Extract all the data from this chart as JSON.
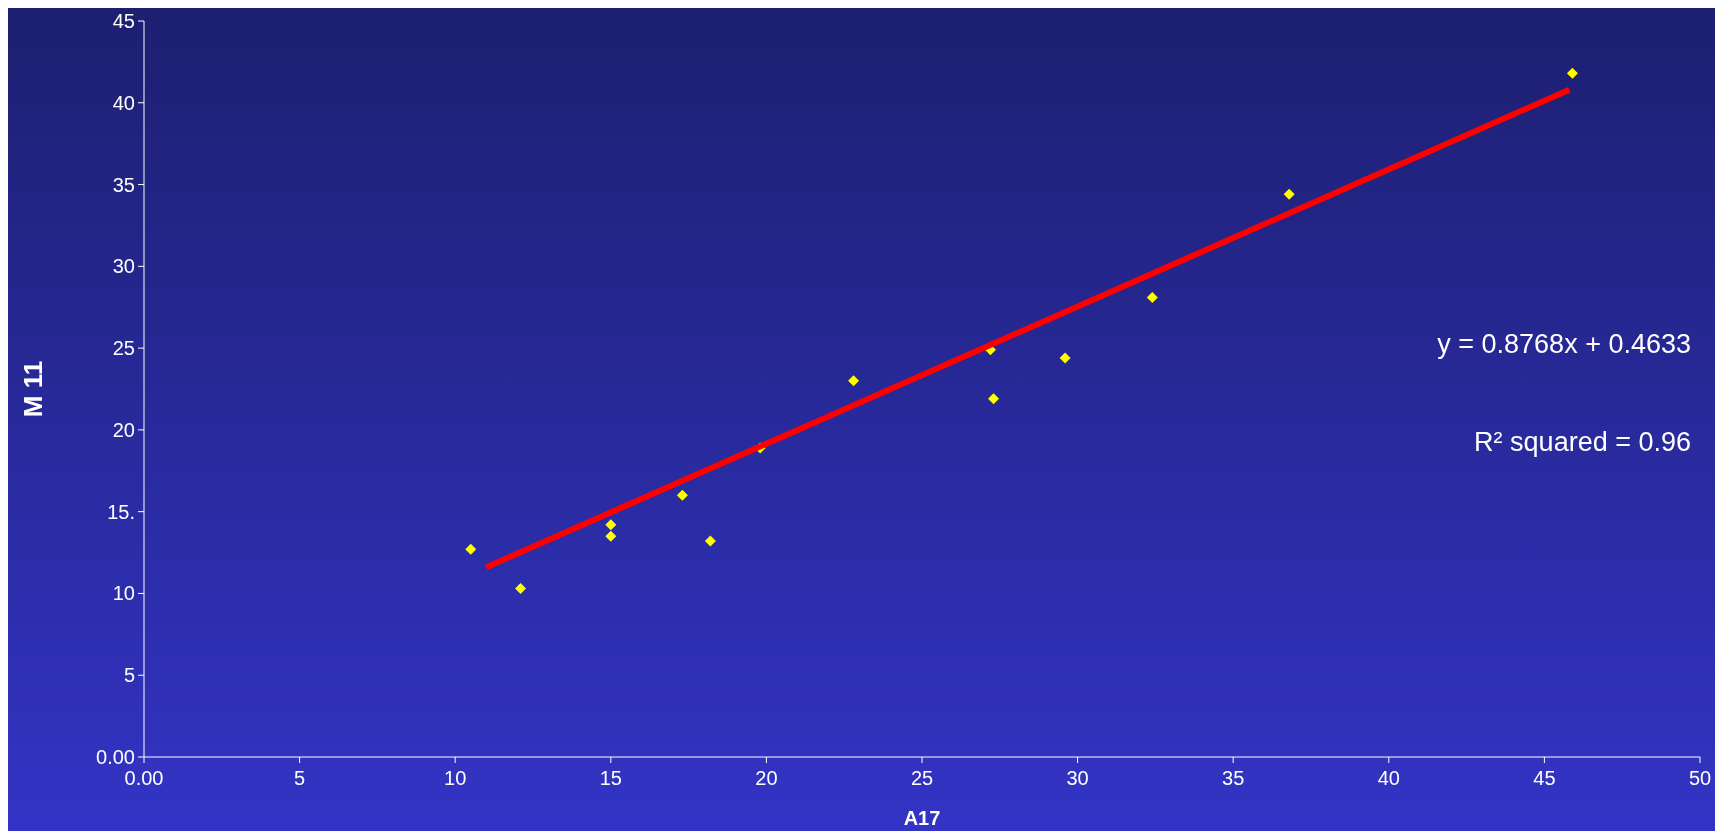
{
  "chart_data": {
    "type": "scatter",
    "xlabel": "A17",
    "ylabel": "M 11",
    "xlim": [
      0,
      50
    ],
    "xticks": [
      {
        "value": 0,
        "label": "0.00"
      },
      5,
      10,
      15,
      20,
      25,
      30,
      35,
      40,
      45,
      50
    ],
    "ylim": [
      0,
      45
    ],
    "yticks": [
      {
        "value": 0,
        "label": "0.00"
      },
      5,
      10,
      {
        "value": 15,
        "label": "15."
      },
      20,
      25,
      30,
      35,
      40,
      45
    ],
    "grid": false,
    "marker": "diamond",
    "series": [
      {
        "color": "#ffff00",
        "x": [
          10.5,
          12.1,
          15.0,
          15.0,
          17.3,
          18.2,
          19.8,
          22.8,
          27.2,
          27.3,
          29.6,
          32.4,
          36.8,
          45.9
        ],
        "values": [
          12.7,
          10.3,
          14.2,
          13.5,
          16.0,
          13.2,
          18.9,
          23.0,
          24.9,
          21.9,
          24.4,
          28.1,
          34.4,
          41.8
        ]
      },
      {
        "type": "line",
        "marker": "none",
        "color": "#ff0000",
        "x": [
          11.0,
          45.8
        ],
        "values": [
          11.6,
          40.8
        ]
      }
    ],
    "annotations": [
      "y = 0.8768x + 0.4633",
      "R² squared  =    0.96"
    ]
  }
}
